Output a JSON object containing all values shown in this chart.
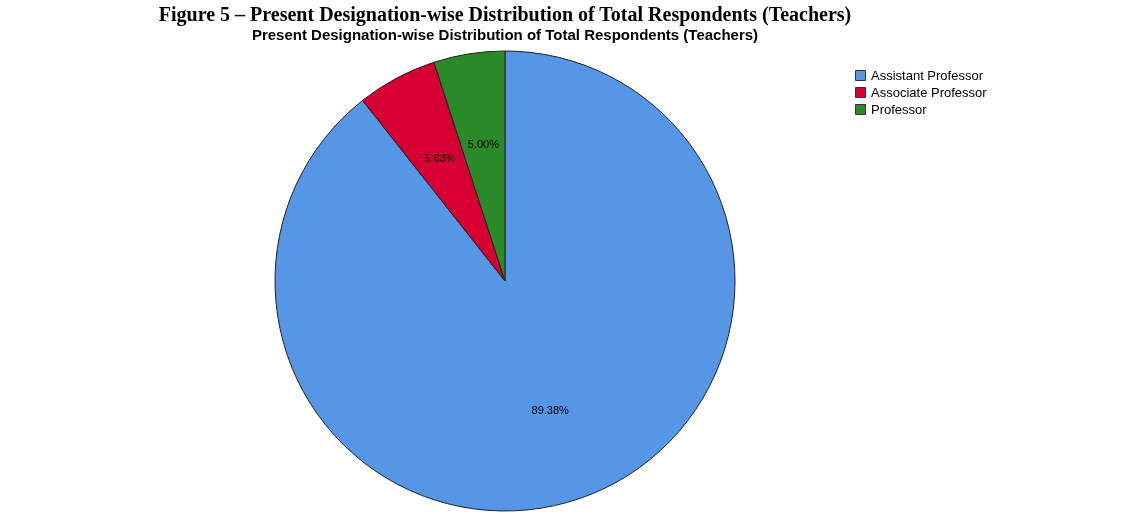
{
  "chart_data": {
    "type": "pie",
    "title": "Present Designation-wise Distribution of Total Respondents (Teachers)",
    "annotations": [
      "Figure 5 – Present Designation-wise Distribution of Total Respondents (Teachers)"
    ],
    "categories": [
      "Assistant Professor",
      "Associate Professor",
      "Professor"
    ],
    "values": [
      89.38,
      5.63,
      5.0
    ],
    "value_labels": [
      "89.38%",
      "5.63%",
      "5.00%"
    ],
    "colors": [
      "#5596e6",
      "#d60032",
      "#2a8a2a"
    ],
    "legend": "top right"
  }
}
